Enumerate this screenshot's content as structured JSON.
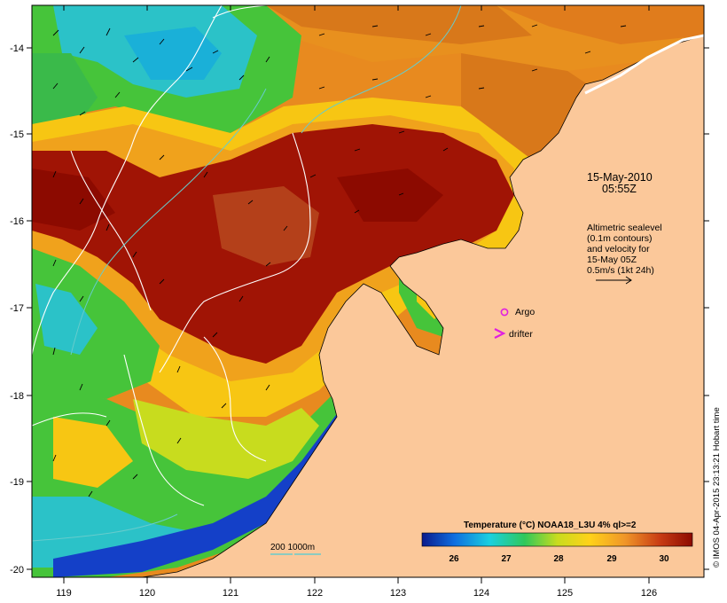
{
  "map": {
    "date_label": "15-May-2010",
    "time_label": "05:55Z",
    "altimetry_lines": [
      "Altimetric sealevel",
      "(0.1m contours)",
      "and velocity for",
      "15-May 05Z",
      "0.5m/s (1kt 24h)"
    ],
    "argo_label": "Argo",
    "drifter_label": "drifter",
    "bathymetry_label": "200  1000m",
    "credit": "© IMOS 04-Apr-2015 23:13:21 Hobart time",
    "x_ticks": [
      "119",
      "120",
      "121",
      "122",
      "123",
      "124",
      "125",
      "126"
    ],
    "y_ticks": [
      "-14",
      "-15",
      "-16",
      "-17",
      "-18",
      "-19",
      "-20"
    ],
    "colorbar": {
      "title": "Temperature (°C) NOAA18_L3U 4% ql>=2",
      "ticks": [
        "26",
        "27",
        "28",
        "29",
        "30"
      ],
      "stops": [
        "#0a1a8c",
        "#0f6ee0",
        "#1ad0e0",
        "#2fc85a",
        "#c8dc1e",
        "#ffd21a",
        "#f09628",
        "#c83c14",
        "#8c0a00"
      ]
    },
    "colors": {
      "land": "#fbc89a",
      "warm": "#a01405",
      "orange": "#e88a1f",
      "yellow": "#f7c613",
      "green": "#46c43a",
      "cyan": "#2bc2c8",
      "blue": "#1440c8",
      "argo": "#e020e0",
      "contour": "#ffffff",
      "bathy": "#66cccc"
    }
  }
}
